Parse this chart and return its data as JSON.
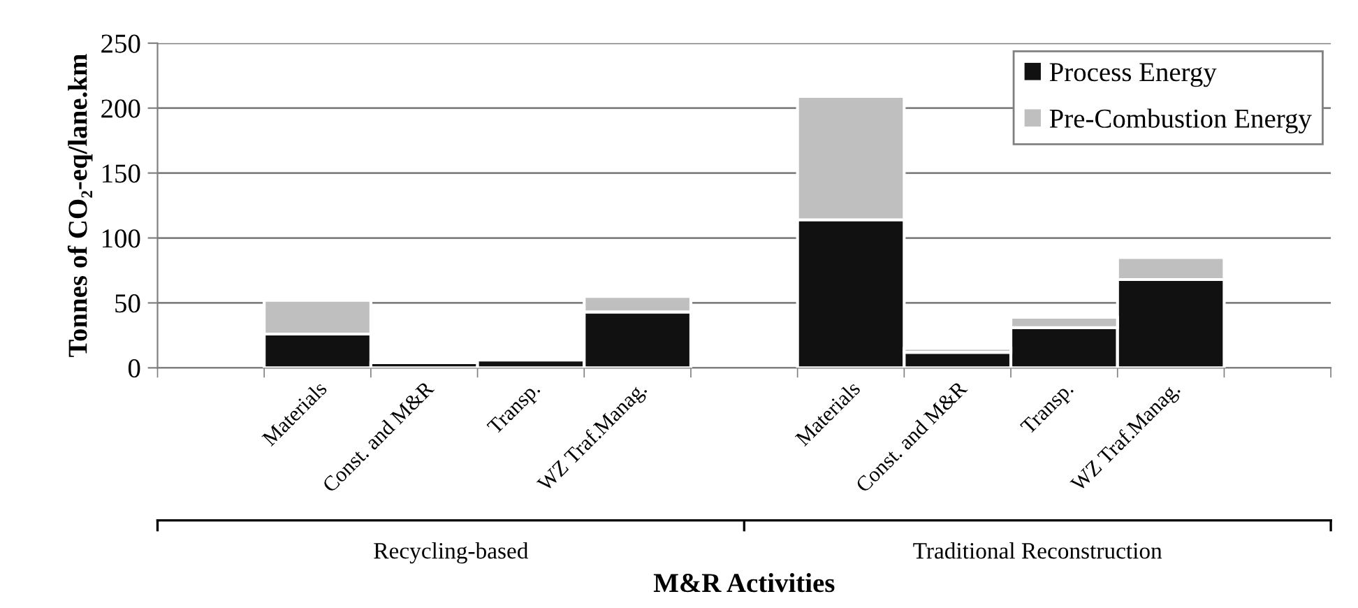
{
  "chart_data": {
    "type": "bar",
    "stacked": true,
    "xlabel": "M&R Activities",
    "ylabel": "Tonnes of CO₂-eq/lane.km",
    "categories": [
      null,
      "Materials",
      "Const. and M&R",
      "Transp.",
      "WZ Traf.Manag.",
      null,
      "Materials",
      "Const. and M&R",
      "Transp.",
      "WZ Traf.Manag.",
      null
    ],
    "series": [
      {
        "name": "Process Energy",
        "color": "#111111",
        "values": [
          null,
          26,
          4,
          6,
          43,
          null,
          114,
          12,
          31,
          68,
          null
        ]
      },
      {
        "name": "Pre-Combustion Energy",
        "color": "#bfbfbf",
        "values": [
          null,
          26,
          null,
          null,
          12,
          null,
          95,
          3,
          8,
          17,
          null
        ]
      }
    ],
    "annotations": [
      "Recycling-based",
      "Traditional Reconstruction"
    ],
    "ylim": [
      0,
      250
    ],
    "yticks": [
      0,
      50,
      100,
      150,
      200,
      250
    ],
    "grid": "y",
    "legend": "top right"
  }
}
